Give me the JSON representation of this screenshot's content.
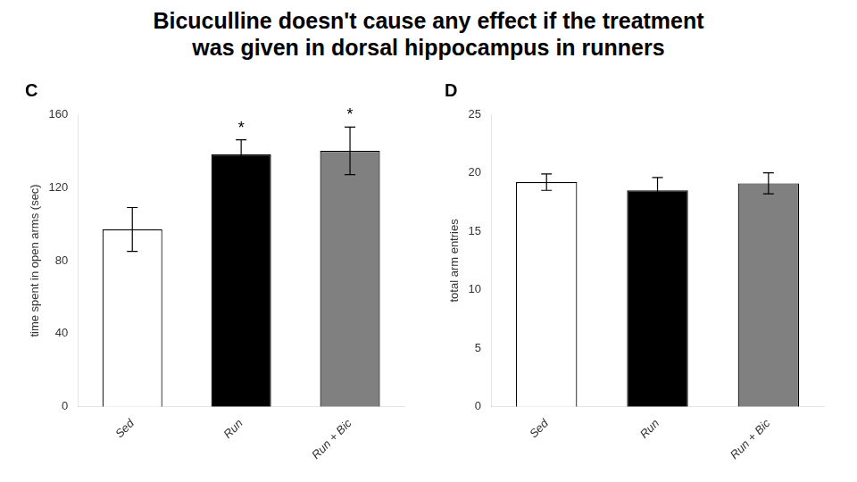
{
  "title": [
    "Bicuculline doesn't cause any effect if the treatment",
    "was given in dorsal hippocampus in runners"
  ],
  "chart_data": [
    {
      "type": "bar",
      "title": "C",
      "categories": [
        "Sed",
        "Run",
        "Run + Bic"
      ],
      "values": [
        97,
        138,
        140
      ],
      "errors": [
        12,
        8,
        13
      ],
      "annotations": [
        null,
        "*",
        "*"
      ],
      "colors": [
        "white",
        "black",
        "#808080"
      ],
      "y_label": "time spent in open arms (sec)",
      "ylim": [
        0,
        160
      ],
      "yticks": [
        0,
        40,
        80,
        120,
        160
      ],
      "grid": false
    },
    {
      "type": "bar",
      "title": "D",
      "categories": [
        "Sed",
        "Run",
        "Run + Bic"
      ],
      "values": [
        19.2,
        18.5,
        19.1
      ],
      "errors": [
        0.7,
        1.1,
        0.9
      ],
      "colors": [
        "white",
        "black",
        "#808080"
      ],
      "y_label": "total arm entries",
      "ylim": [
        0,
        25
      ],
      "yticks": [
        0,
        5,
        10,
        15,
        20,
        25
      ],
      "grid": false
    }
  ]
}
